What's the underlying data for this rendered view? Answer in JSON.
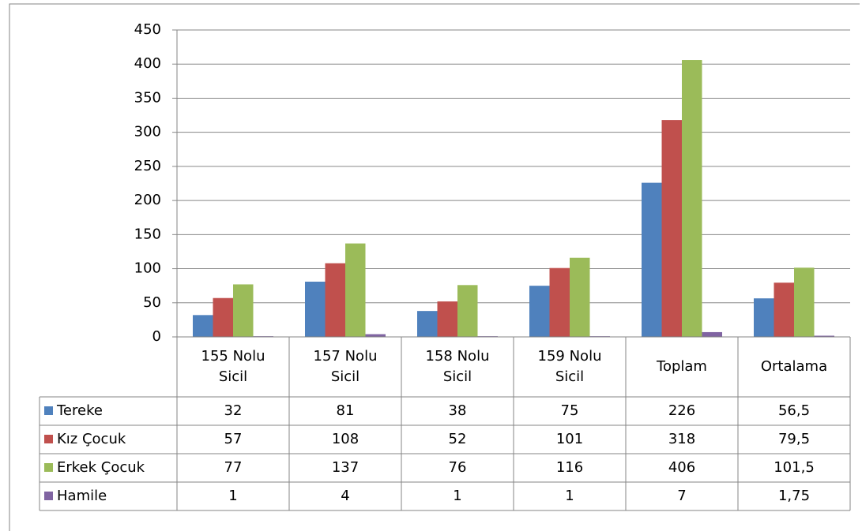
{
  "chart_data": {
    "type": "bar",
    "categories": [
      "155 Nolu Sicil",
      "157 Nolu Sicil",
      "158 Nolu Sicil",
      "159 Nolu Sicil",
      "Toplam",
      "Ortalama"
    ],
    "series": [
      {
        "name": "Tereke",
        "color": "#4f81bd",
        "values": [
          32,
          81,
          38,
          75,
          226,
          56.5
        ],
        "value_labels": [
          "32",
          "81",
          "38",
          "75",
          "226",
          "56,5"
        ]
      },
      {
        "name": "Kız Çocuk",
        "color": "#c0504d",
        "values": [
          57,
          108,
          52,
          101,
          318,
          79.5
        ],
        "value_labels": [
          "57",
          "108",
          "52",
          "101",
          "318",
          "79,5"
        ]
      },
      {
        "name": "Erkek Çocuk",
        "color": "#9bbb59",
        "values": [
          77,
          137,
          76,
          116,
          406,
          101.5
        ],
        "value_labels": [
          "77",
          "137",
          "76",
          "116",
          "406",
          "101,5"
        ]
      },
      {
        "name": "Hamile",
        "color": "#8064a2",
        "values": [
          1,
          4,
          1,
          1,
          7,
          1.75
        ],
        "value_labels": [
          "1",
          "4",
          "1",
          "1",
          "7",
          "1,75"
        ]
      }
    ],
    "ylim": [
      0,
      450
    ],
    "yticks": [
      0,
      50,
      100,
      150,
      200,
      250,
      300,
      350,
      400,
      450
    ],
    "grid": true,
    "data_table": true
  }
}
